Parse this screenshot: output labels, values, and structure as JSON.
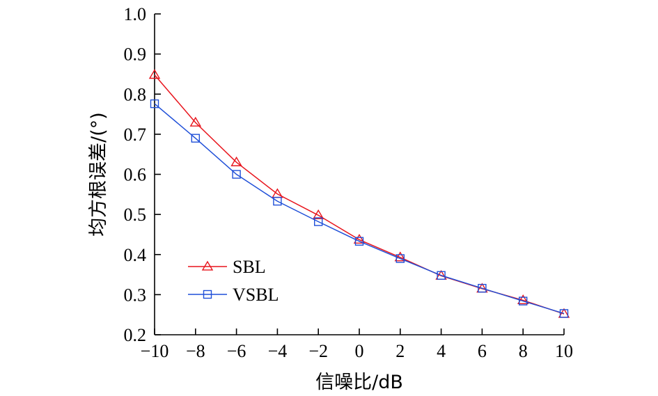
{
  "chart_data": {
    "type": "line",
    "xlabel": "信噪比/dB",
    "ylabel": "均方根误差/(°)",
    "x": [
      -10,
      -8,
      -6,
      -4,
      -2,
      0,
      2,
      4,
      6,
      8,
      10
    ],
    "xlim": [
      -10,
      10
    ],
    "ylim": [
      0.2,
      1.0
    ],
    "xticks": [
      "−10",
      "−8",
      "−6",
      "−4",
      "−2",
      "0",
      "2",
      "4",
      "6",
      "8",
      "10"
    ],
    "yticks": [
      "0.2",
      "0.3",
      "0.4",
      "0.5",
      "0.6",
      "0.7",
      "0.8",
      "0.9",
      "1.0"
    ],
    "ytick_values": [
      0.2,
      0.3,
      0.4,
      0.5,
      0.6,
      0.7,
      0.8,
      0.9,
      1.0
    ],
    "grid": false,
    "legend_position": "lower-left",
    "series": [
      {
        "name": "SBL",
        "color": "#e8141c",
        "marker": "triangle",
        "values": [
          0.848,
          0.729,
          0.63,
          0.551,
          0.498,
          0.437,
          0.393,
          0.347,
          0.315,
          0.286,
          0.252
        ]
      },
      {
        "name": "VSBL",
        "color": "#1f4fd8",
        "marker": "square",
        "values": [
          0.776,
          0.69,
          0.6,
          0.533,
          0.482,
          0.433,
          0.39,
          0.348,
          0.316,
          0.284,
          0.253
        ]
      }
    ]
  }
}
